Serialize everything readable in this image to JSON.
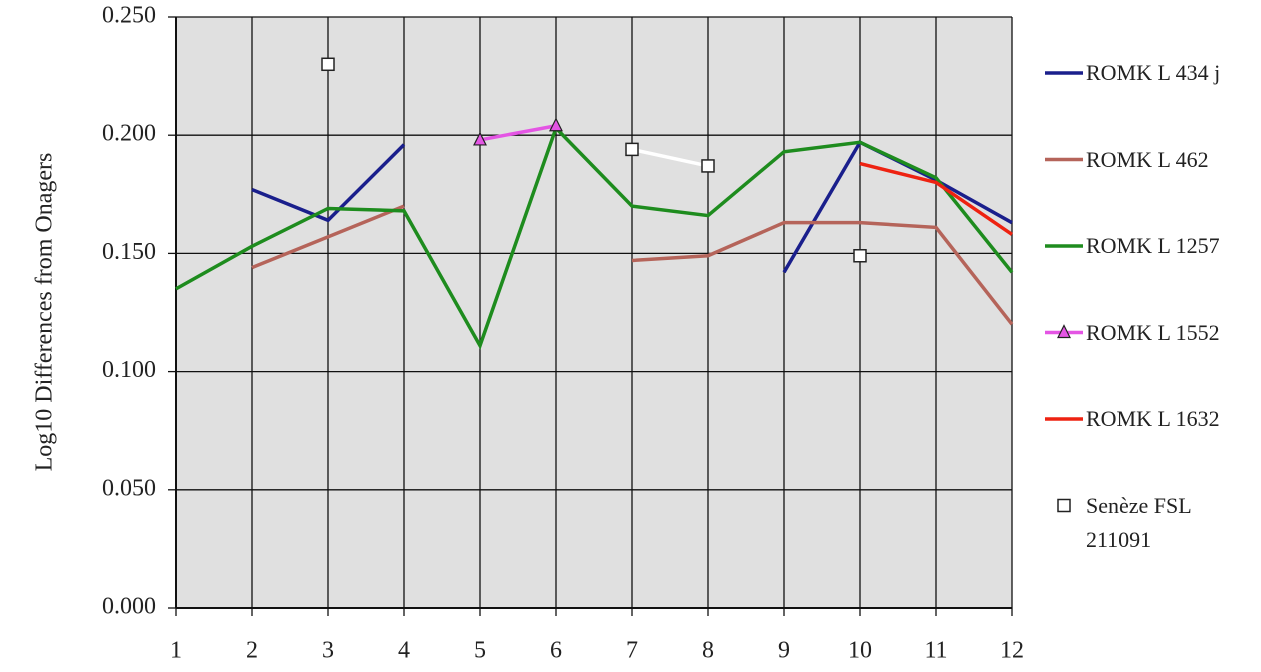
{
  "chart_data": {
    "type": "line",
    "y_label": "Log10 Differences from Onagers",
    "x": [
      1,
      2,
      3,
      4,
      5,
      6,
      7,
      8,
      9,
      10,
      11,
      12
    ],
    "xlim": [
      1,
      12
    ],
    "xticks": [
      1,
      2,
      3,
      4,
      5,
      6,
      7,
      8,
      9,
      10,
      11,
      12
    ],
    "ylim": [
      0,
      0.25
    ],
    "yticks": [
      {
        "value": 0,
        "label": "0.000"
      },
      {
        "value": 0.05,
        "label": "0.050"
      },
      {
        "value": 0.1,
        "label": "0.100"
      },
      {
        "value": 0.15,
        "label": "0.150"
      },
      {
        "value": 0.2,
        "label": "0.200"
      },
      {
        "value": 0.25,
        "label": "0.250"
      }
    ],
    "grid": true,
    "series": [
      {
        "name": "ROMK L 434 j",
        "color": "#1a1f8c",
        "marker": "none",
        "values": [
          null,
          0.177,
          0.164,
          0.196,
          null,
          null,
          null,
          null,
          0.142,
          0.197,
          0.181,
          0.163
        ]
      },
      {
        "name": "ROMK L 462",
        "color": "#b5645a",
        "marker": "none",
        "values": [
          null,
          0.144,
          0.157,
          0.17,
          null,
          null,
          0.147,
          0.149,
          0.163,
          0.163,
          0.161,
          0.12
        ]
      },
      {
        "name": "ROMK L 1257",
        "color": "#1e8c1e",
        "marker": "none",
        "values": [
          0.135,
          0.153,
          0.169,
          0.168,
          0.111,
          0.203,
          0.17,
          0.166,
          0.193,
          0.197,
          0.182,
          0.142
        ]
      },
      {
        "name": "ROMK L 1552",
        "color": "#e455e4",
        "marker": "triangle",
        "values": [
          null,
          null,
          null,
          null,
          0.198,
          0.204,
          null,
          null,
          null,
          null,
          null,
          null
        ]
      },
      {
        "name": "ROMK L 1632",
        "color": "#ee2211",
        "marker": "none",
        "values": [
          null,
          null,
          null,
          null,
          null,
          null,
          null,
          null,
          null,
          0.188,
          0.18,
          0.158
        ]
      },
      {
        "name": "Senèze FSL 211091",
        "color": "#ffffff",
        "marker": "square",
        "values": [
          null,
          null,
          0.23,
          null,
          null,
          null,
          0.194,
          0.187,
          null,
          0.149,
          null,
          null
        ]
      }
    ]
  }
}
